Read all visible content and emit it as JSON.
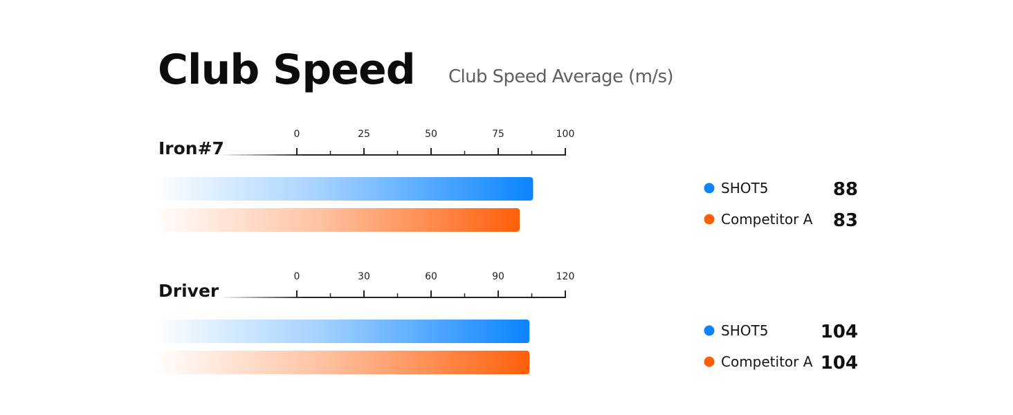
{
  "title": "Club Speed",
  "subtitle": "Club Speed Average (m/s)",
  "colors": {
    "shot5": "#0A84FF",
    "competitor": "#FF5F0A",
    "axis": "#222222"
  },
  "chart_data": [
    {
      "type": "bar",
      "orientation": "horizontal",
      "category": "Iron#7",
      "xlim": [
        0,
        100
      ],
      "ticks": [
        0,
        25,
        50,
        75,
        100
      ],
      "series": [
        {
          "name": "SHOT5",
          "value": 88,
          "label": "88",
          "color_key": "shot5"
        },
        {
          "name": "Competitor A",
          "value": 83,
          "label": "83",
          "color_key": "competitor"
        }
      ]
    },
    {
      "type": "bar",
      "orientation": "horizontal",
      "category": "Driver",
      "xlim": [
        0,
        120
      ],
      "ticks": [
        0,
        30,
        60,
        90,
        120
      ],
      "series": [
        {
          "name": "SHOT5",
          "value": 104,
          "label": "104",
          "color_key": "shot5"
        },
        {
          "name": "Competitor A",
          "value": 104,
          "label": "104",
          "color_key": "competitor"
        }
      ]
    }
  ]
}
